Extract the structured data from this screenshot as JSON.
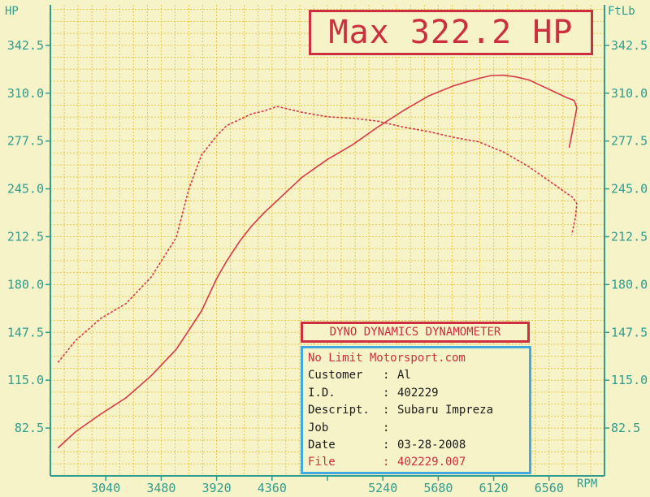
{
  "chart_data": {
    "type": "line",
    "left_axis_unit": "HP",
    "right_axis_unit": "FtLb",
    "x_axis_unit": "RPM",
    "x_ticks": [
      3040,
      3480,
      3920,
      4360,
      4800,
      5240,
      5680,
      6120,
      6560
    ],
    "x_tick_labels": [
      "3040",
      "3480",
      "3920",
      "4360",
      "",
      "5240",
      "5680",
      "6120",
      "6560"
    ],
    "xlim": [
      2600,
      7000
    ],
    "y_ticks": [
      82.5,
      115.0,
      147.5,
      180.0,
      212.5,
      245.0,
      277.5,
      310.0,
      342.5
    ],
    "y_tick_labels": [
      "82.5",
      "115.0",
      "147.5",
      "180.0",
      "212.5",
      "245.0",
      "277.5",
      "310.0",
      "342.5"
    ],
    "ylim": [
      50,
      370
    ],
    "grid": true,
    "series": [
      {
        "style": "solid",
        "color": "#d63a48",
        "x": [
          2660,
          2800,
          3000,
          3200,
          3400,
          3600,
          3800,
          3920,
          4000,
          4100,
          4200,
          4300,
          4400,
          4500,
          4600,
          4800,
          5000,
          5200,
          5400,
          5600,
          5800,
          6000,
          6100,
          6200,
          6300,
          6400,
          6500,
          6600,
          6700,
          6760,
          6780,
          6720
        ],
        "y": [
          69,
          80,
          92,
          103,
          118,
          136,
          162,
          184,
          196,
          209,
          220,
          229,
          237,
          245,
          253,
          265,
          275,
          287,
          298,
          308,
          315,
          320,
          322,
          322.2,
          321,
          319,
          315,
          311,
          307,
          305,
          300,
          273
        ]
      },
      {
        "style": "dashed",
        "color": "#d63a48",
        "x": [
          2660,
          2800,
          3000,
          3200,
          3400,
          3600,
          3700,
          3800,
          3920,
          4000,
          4100,
          4200,
          4300,
          4400,
          4500,
          4600,
          4800,
          5000,
          5200,
          5400,
          5600,
          5800,
          6000,
          6200,
          6400,
          6600,
          6700,
          6750,
          6780,
          6770,
          6740
        ],
        "y": [
          127,
          142,
          157,
          167,
          185,
          212,
          245,
          268,
          281,
          288,
          292,
          296,
          298,
          301,
          299,
          297,
          294,
          293,
          291,
          287,
          284,
          280,
          277,
          270,
          260,
          248,
          242,
          239,
          235,
          226,
          214
        ]
      }
    ],
    "annotations": {
      "max_label": "Max 322.2 HP"
    }
  },
  "info": {
    "title": "DYNO DYNAMICS DYNAMOMETER",
    "company": "No Limit Motorsport.com",
    "rows": [
      {
        "label": "Customer",
        "value": "Al",
        "highlight": false
      },
      {
        "label": "I.D.",
        "value": "402229",
        "highlight": false
      },
      {
        "label": "Descript.",
        "value": "Subaru Impreza",
        "highlight": false
      },
      {
        "label": "Job",
        "value": "",
        "highlight": false
      },
      {
        "label": "Date",
        "value": "03-28-2008",
        "highlight": false
      },
      {
        "label": "File",
        "value": "402229.007",
        "highlight": true
      }
    ]
  },
  "colors": {
    "background": "#f6f3c9",
    "grid": "#e8c64a",
    "axis": "#2f9c8e",
    "curve": "#d63a48",
    "accent_red": "#cc2f3e",
    "accent_blue": "#3fa9e0"
  }
}
